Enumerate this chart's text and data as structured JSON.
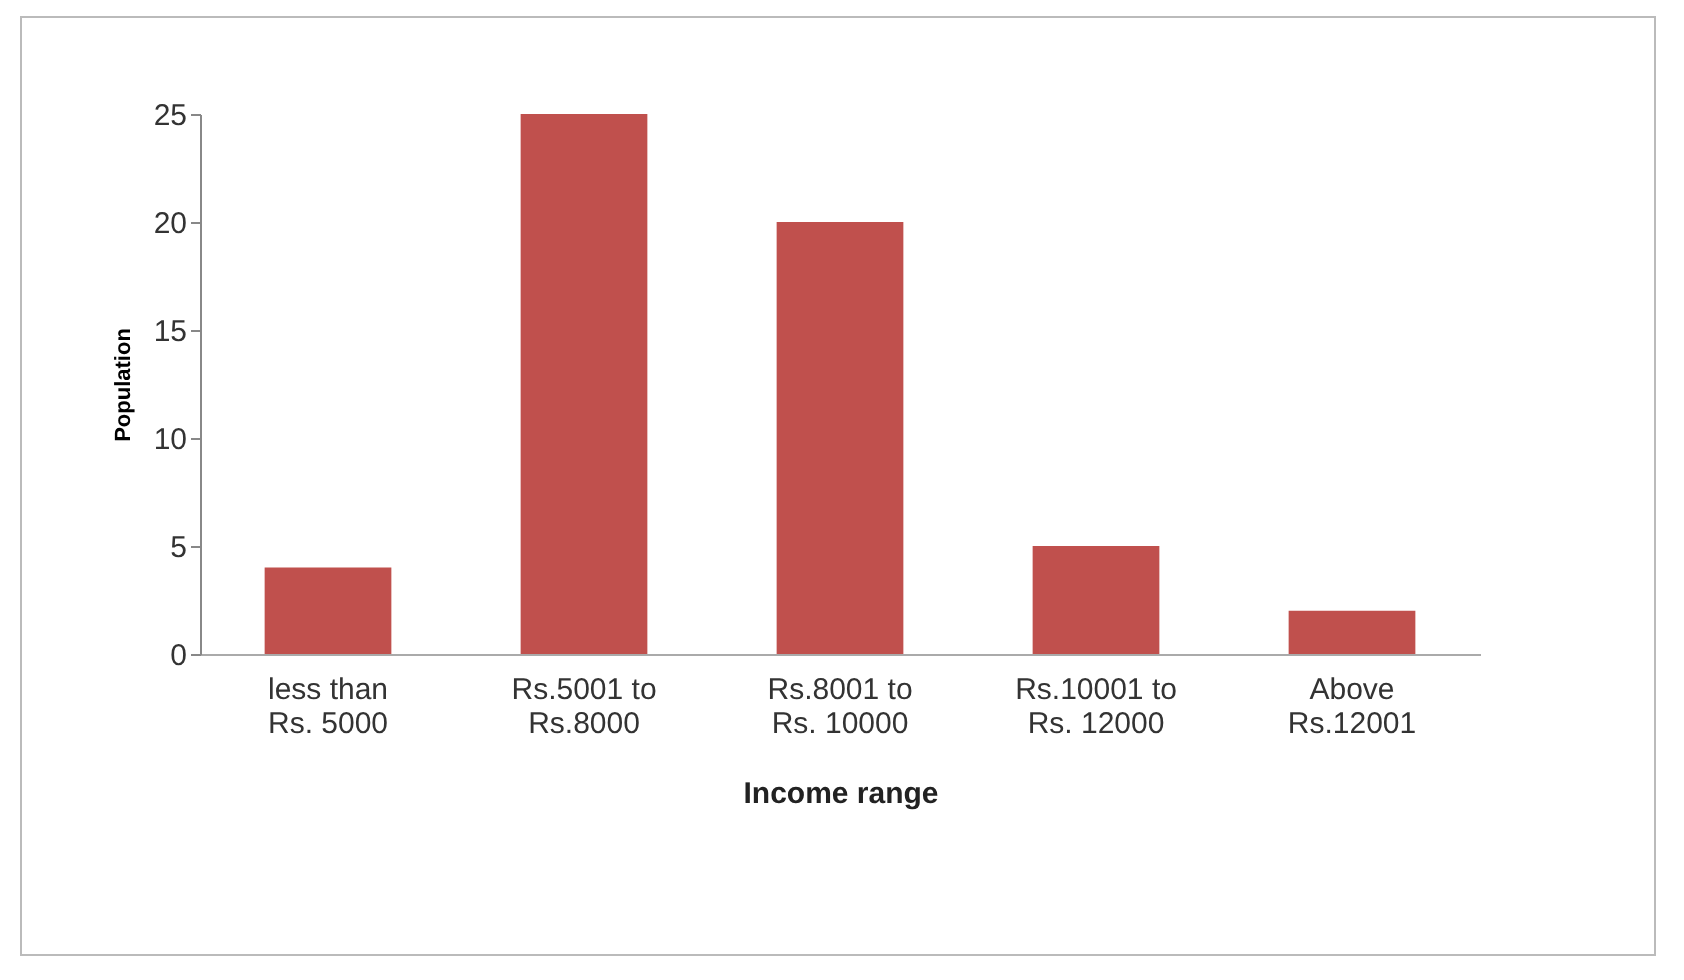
{
  "chart_data": {
    "type": "bar",
    "xlabel": "Income range",
    "ylabel": "Population",
    "categories": [
      "less than Rs. 5000",
      "Rs.5001 to Rs.8000",
      "Rs.8001 to Rs. 10000",
      "Rs.10001 to Rs. 12000",
      "Above Rs.12001"
    ],
    "values": [
      4,
      25,
      20,
      5,
      2
    ],
    "color": "#c0504d",
    "ylim": [
      0,
      25
    ],
    "yticks": [
      0,
      5,
      10,
      15,
      20,
      25
    ],
    "grid": false
  }
}
